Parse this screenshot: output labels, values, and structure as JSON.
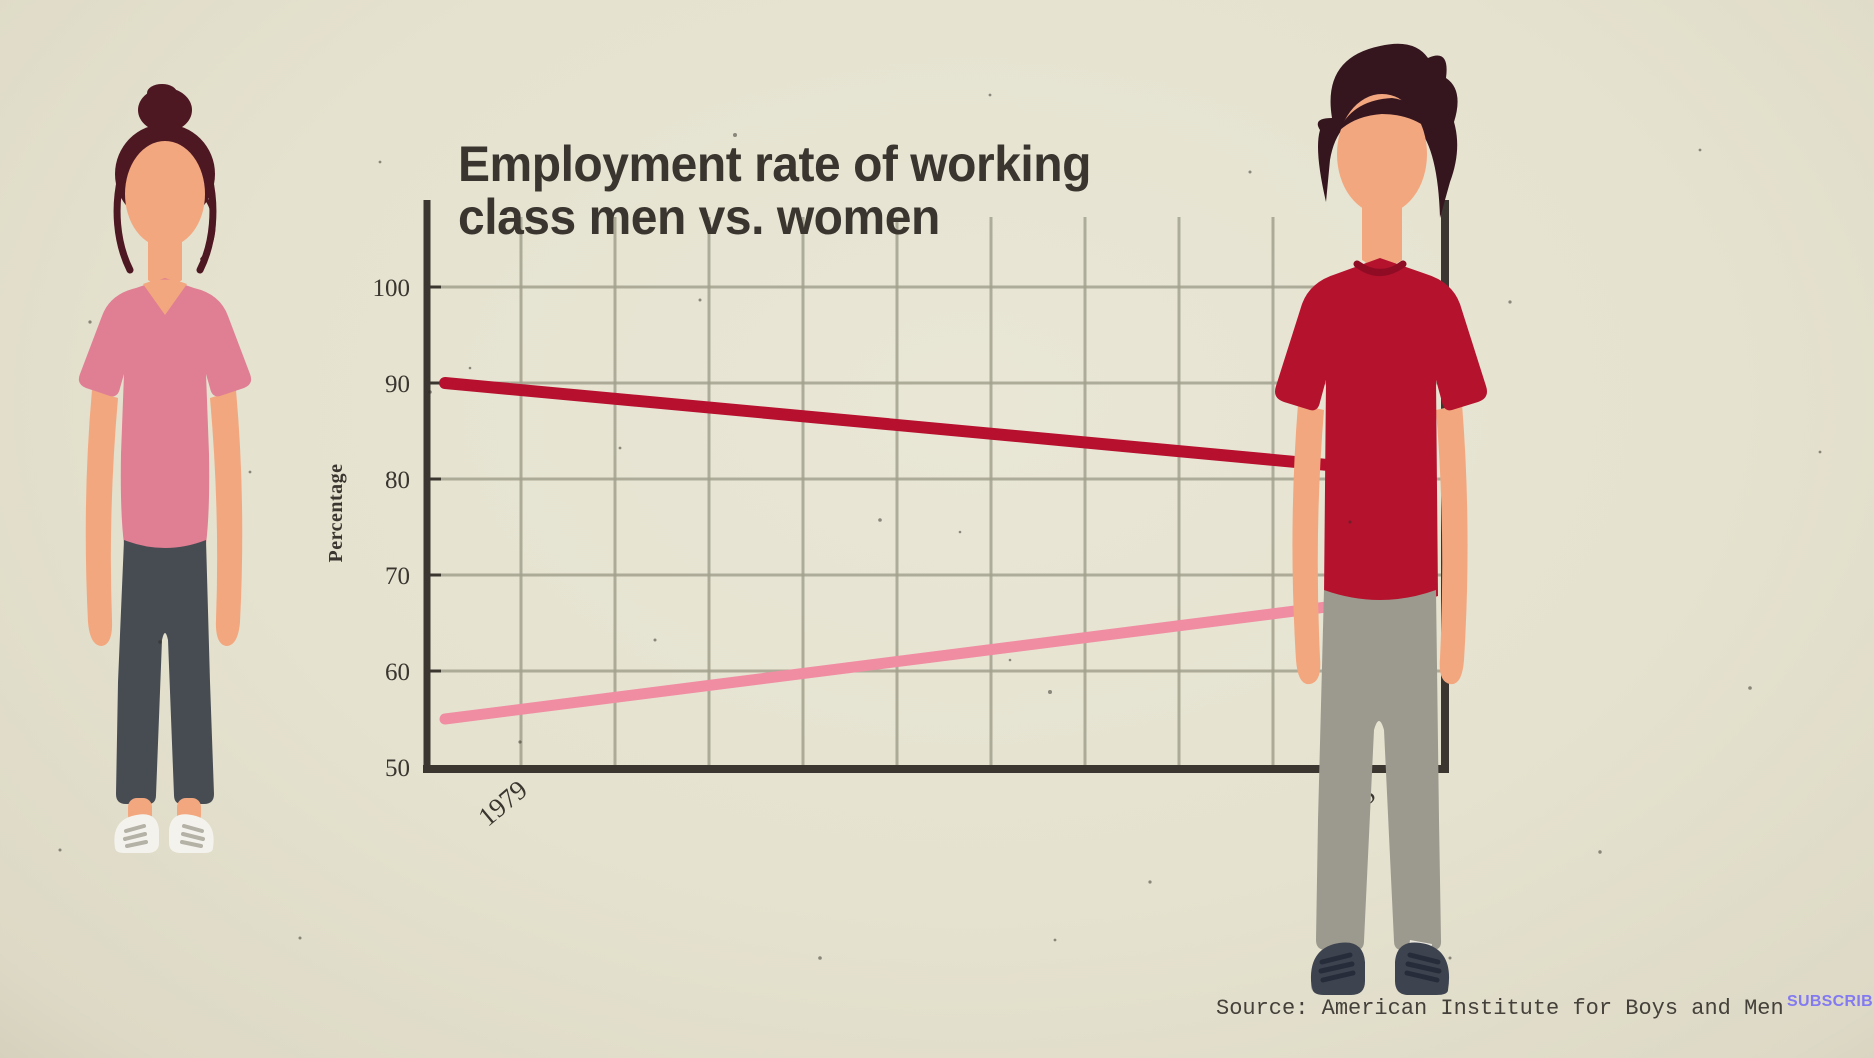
{
  "chart_data": {
    "type": "line",
    "title": "Employment rate of working class men vs. women",
    "title_lines": [
      "Employment rate of working",
      "class men vs. women"
    ],
    "ylabel": "Percentage",
    "xlabel": "",
    "ylim": [
      50,
      100
    ],
    "yticks": [
      50,
      60,
      70,
      80,
      90,
      100
    ],
    "x": [
      1979,
      2023
    ],
    "x_labels": [
      "1979",
      "2023"
    ],
    "grid": true,
    "legend": "none",
    "series": [
      {
        "name": "Working class men",
        "color": "#b6102e",
        "values": [
          90,
          80.5
        ]
      },
      {
        "name": "Working class women",
        "color": "#f08da2",
        "values": [
          55,
          68
        ]
      }
    ]
  },
  "source": {
    "label": "Source: American Institute for Boys and Men"
  },
  "subscribe": {
    "label": "SUBSCRIBE",
    "color": "#8379f1"
  },
  "figures": {
    "left": {
      "name": "working-class-woman",
      "hair": "#4e1823",
      "skin": "#f2a77f",
      "shirt": "#e07e93",
      "pants": "#474c53",
      "shoes": "#f4f2ec",
      "shoe_detail": "#b4b2a6"
    },
    "right": {
      "name": "working-class-man",
      "hair": "#35161f",
      "skin": "#f2a77f",
      "shirt": "#b5122e",
      "collar": "#8f0c24",
      "pants": "#9c9a8e",
      "shoes": "#3e4350",
      "lace": "#272c3a",
      "sock": "#e9e7de"
    }
  },
  "colors": {
    "background": "#e5e2cf",
    "axis": "#3c3630",
    "grid": "#a3a28f",
    "title_text": "#3a352f",
    "tick_text": "#3a352f",
    "source_text": "#45403a",
    "subscribe_text": "#8379f1"
  }
}
